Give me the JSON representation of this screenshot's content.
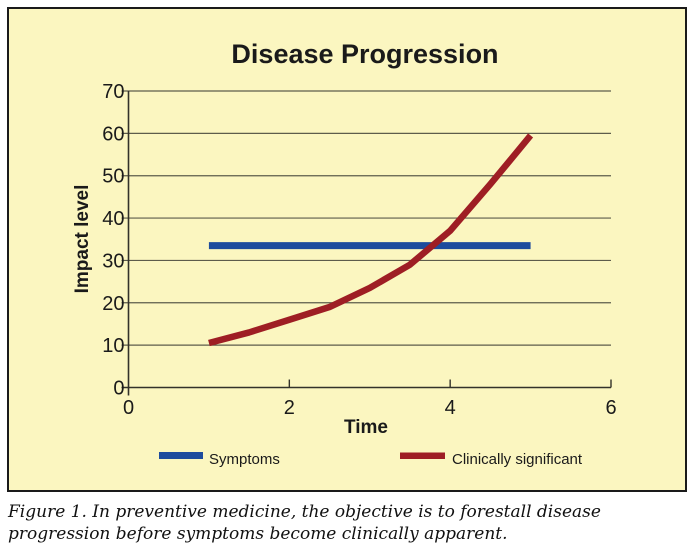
{
  "figure": {
    "caption": "Figure 1. In preventive medicine, the objective is to forestall disease progression before symptoms become clinically apparent.",
    "page_background": "#FFFFFF",
    "box_background": "#FBF6C0",
    "box_border_color": "#1A1A1A"
  },
  "chart_data": {
    "type": "line",
    "title": "Disease Progression",
    "xlabel": "Time",
    "ylabel": "Impact level",
    "xlim": [
      0,
      6
    ],
    "ylim": [
      0,
      70
    ],
    "x_ticks": [
      0,
      2,
      4,
      6
    ],
    "y_ticks": [
      0,
      10,
      20,
      30,
      40,
      50,
      60,
      70
    ],
    "grid": "horizontal-only",
    "grid_color": "#5D5C4B",
    "axis_color": "#33322A",
    "text_color": "#1A1A1A",
    "legend_position": "bottom-inside",
    "series": [
      {
        "name": "Symptoms",
        "color": "#1E4C9D",
        "stroke_width": 7,
        "x": [
          1,
          5
        ],
        "y": [
          33.5,
          33.5
        ]
      },
      {
        "name": "Clinically significant",
        "color": "#9E1E24",
        "stroke_width": 6.5,
        "x": [
          1,
          1.5,
          2,
          2.5,
          3,
          3.5,
          4,
          4.5,
          5
        ],
        "y": [
          10.5,
          13,
          16,
          19,
          23.5,
          29,
          37,
          48,
          59.5
        ]
      }
    ]
  }
}
